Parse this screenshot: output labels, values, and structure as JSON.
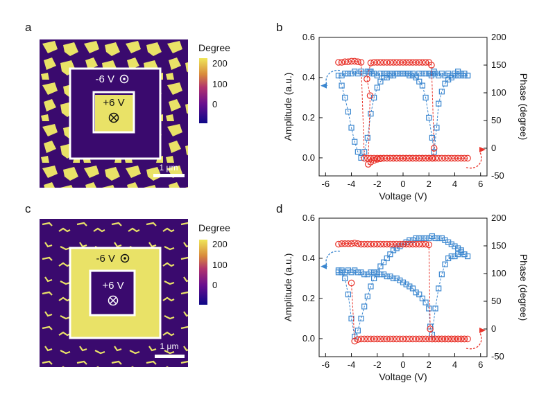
{
  "panels": {
    "a": {
      "letter": "a",
      "colorbar_title": "Degree",
      "colorbar_ticks": [
        "200",
        "100",
        "0"
      ],
      "outer_label": "-6 V",
      "inner_label": "+6 V",
      "scalebar_label": "1 μm"
    },
    "c": {
      "letter": "c",
      "colorbar_title": "Degree",
      "colorbar_ticks": [
        "200",
        "100",
        "0"
      ],
      "outer_label": "-6 V",
      "inner_label": "+6 V",
      "scalebar_label": "1 μm"
    }
  },
  "colors": {
    "map_dark": "#3a0a6e",
    "map_bright": "#e9e267",
    "amplitude": "#3a86cf",
    "phase": "#e8332a"
  },
  "chart_data": [
    {
      "panel": "b",
      "type": "scatter",
      "xlabel": "Voltage (V)",
      "ylabel": "Amplitude (a.u.)",
      "y2label": "Phase (degree)",
      "xlim": [
        -6.5,
        6.5
      ],
      "ylim": [
        -0.09,
        0.6
      ],
      "y2lim": [
        -50,
        200
      ],
      "xticks": [
        -6,
        -4,
        -2,
        0,
        2,
        4,
        6
      ],
      "yticks": [
        0.0,
        0.2,
        0.4,
        0.6
      ],
      "y2ticks": [
        -50,
        0,
        50,
        100,
        150,
        200
      ],
      "series": [
        {
          "axis": "left",
          "marker": "square",
          "x": [
            5,
            4.75,
            4.5,
            4.25,
            4,
            3.75,
            3.5,
            3.25,
            3,
            2.75,
            2.5,
            2.4,
            2.3,
            2.2,
            2.1,
            2,
            1.75,
            1.5,
            1.25,
            1,
            0.75,
            0.5,
            0.25,
            0,
            -0.25,
            -0.5,
            -0.75,
            -1,
            -1.25,
            -1.5,
            -1.75,
            -2,
            -2.25,
            -2.4,
            -2.5,
            -2.6,
            -2.75,
            -3,
            -3.25,
            -3.5,
            -3.75,
            -4,
            -4.25,
            -4.5,
            -4.75,
            -5,
            -4.75,
            -4.5,
            -4.25,
            -4,
            -3.75,
            -3.5,
            -3.25,
            -3,
            -2.75,
            -2.5,
            -2.25,
            -2,
            -1.75,
            -1.5,
            -1.25,
            -1,
            -0.75,
            -0.5,
            -0.25,
            0,
            0.25,
            0.5,
            0.75,
            1,
            1.25,
            1.5,
            1.75,
            2,
            2.25,
            2.4,
            2.6,
            2.75,
            3,
            3.25,
            3.5,
            3.75,
            4,
            4.25,
            4.5,
            4.75,
            5
          ],
          "y": [
            0.41,
            0.42,
            0.42,
            0.43,
            0.42,
            0.41,
            0.42,
            0.41,
            0.42,
            0.41,
            0.42,
            0.43,
            0.42,
            0.41,
            0.42,
            0.42,
            0.42,
            0.42,
            0.42,
            0.41,
            0.42,
            0.41,
            0.42,
            0.42,
            0.42,
            0.42,
            0.41,
            0.42,
            0.42,
            0.42,
            0.42,
            0.41,
            0.42,
            0.42,
            0.43,
            0.43,
            0.43,
            0.42,
            0.43,
            0.42,
            0.43,
            0.42,
            0.42,
            0.42,
            0.41,
            0.41,
            0.36,
            0.3,
            0.23,
            0.15,
            0.08,
            0.03,
            0.0,
            0.03,
            0.1,
            0.22,
            0.3,
            0.35,
            0.38,
            0.4,
            0.4,
            0.41,
            0.42,
            0.42,
            0.42,
            0.42,
            0.42,
            0.42,
            0.41,
            0.4,
            0.38,
            0.36,
            0.3,
            0.2,
            0.1,
            0.03,
            0.15,
            0.27,
            0.33,
            0.37,
            0.39,
            0.4,
            0.41,
            0.41,
            0.41,
            0.41,
            0.41
          ]
        },
        {
          "axis": "right",
          "marker": "circle",
          "x": [
            5,
            4.75,
            4.5,
            4.25,
            4,
            3.75,
            3.5,
            3.25,
            3,
            2.75,
            2.5,
            2.25,
            2,
            1.75,
            1.5,
            1.25,
            1,
            0.75,
            0.5,
            0.25,
            0,
            -0.25,
            -0.5,
            -0.75,
            -1,
            -1.25,
            -1.5,
            -1.75,
            -2,
            -2.25,
            -2.5,
            -2.7,
            -2.55,
            -2.8,
            -2.5,
            -2.25,
            -2,
            -1.75,
            -1.5,
            -1.25,
            -1,
            -0.75,
            -0.5,
            -0.25,
            0,
            0.25,
            0.5,
            0.75,
            1,
            1.25,
            1.5,
            1.75,
            2,
            2.2,
            2.4,
            2.3,
            2.25,
            2,
            1.75,
            1.5,
            1.25,
            1,
            0.75,
            0.5,
            0.25,
            0,
            -0.25,
            -0.5,
            -0.75,
            -1,
            -1.25,
            -1.5,
            -1.75,
            -2,
            -2.25,
            -2.5,
            -2.75,
            -3,
            -3.25,
            -3.5,
            -3.75,
            -4,
            -4.25,
            -4.5,
            -4.75,
            -5
          ],
          "y": [
            -18,
            -18,
            -18,
            -18,
            -18,
            -18,
            -18,
            -18,
            -18,
            -18,
            -18,
            -18,
            -18,
            -18,
            -18,
            -18,
            -18,
            -18,
            -18,
            -18,
            -18,
            -18,
            -18,
            -18,
            -18,
            -18,
            -18,
            -19,
            -20,
            -22,
            -25,
            -29,
            95,
            125,
            154,
            155,
            155,
            155,
            155,
            155,
            155,
            155,
            155,
            155,
            155,
            155,
            155,
            155,
            155,
            155,
            155,
            155,
            155,
            150,
            0,
            -18,
            -18,
            -18,
            -18,
            -18,
            -18,
            -18,
            -18,
            -18,
            -18,
            -18,
            -18,
            -18,
            -18,
            -18,
            -18,
            -18,
            -18,
            -18,
            -18,
            -18,
            -18,
            -18,
            155,
            156,
            157,
            157,
            156,
            156,
            155,
            155
          ]
        }
      ]
    },
    {
      "panel": "d",
      "type": "scatter",
      "xlabel": "Voltage (V)",
      "ylabel": "Amplitude (a.u.)",
      "y2label": "Phase (degree)",
      "xlim": [
        -6.5,
        6.5
      ],
      "ylim": [
        -0.09,
        0.6
      ],
      "y2lim": [
        -50,
        200
      ],
      "xticks": [
        -6,
        -4,
        -2,
        0,
        2,
        4,
        6
      ],
      "yticks": [
        0.0,
        0.2,
        0.4,
        0.6
      ],
      "y2ticks": [
        -50,
        0,
        50,
        100,
        150,
        200
      ],
      "series": [
        {
          "axis": "left",
          "marker": "square",
          "x": [
            -5,
            -4.75,
            -4.5,
            -4.25,
            -4,
            -3.75,
            -3.5,
            -3.25,
            -3,
            -2.75,
            -2.5,
            -2.25,
            -2,
            -1.75,
            -1.5,
            -1.25,
            -1,
            -0.75,
            -0.5,
            -0.25,
            0,
            0.25,
            0.5,
            0.75,
            1,
            1.25,
            1.5,
            1.75,
            2,
            2.1,
            2.25,
            2.5,
            2.75,
            3,
            3.25,
            3.5,
            3.75,
            4,
            4.25,
            4.5,
            4.75,
            5,
            4.75,
            4.5,
            4.25,
            4,
            3.75,
            3.5,
            3.25,
            3,
            2.75,
            2.5,
            2.25,
            2,
            1.75,
            1.5,
            1.25,
            1,
            0.75,
            0.5,
            0.25,
            0,
            -0.25,
            -0.5,
            -0.75,
            -1,
            -1.25,
            -1.5,
            -1.75,
            -2,
            -2.25,
            -2.5,
            -2.75,
            -3,
            -3.25,
            -3.5,
            -3.75,
            -4,
            -4.25,
            -4.5,
            -4.75,
            -5
          ],
          "y": [
            0.33,
            0.34,
            0.33,
            0.34,
            0.33,
            0.34,
            0.33,
            0.33,
            0.32,
            0.32,
            0.33,
            0.33,
            0.32,
            0.32,
            0.32,
            0.31,
            0.31,
            0.3,
            0.3,
            0.29,
            0.28,
            0.27,
            0.26,
            0.25,
            0.23,
            0.22,
            0.2,
            0.18,
            0.15,
            0.06,
            0.02,
            0.15,
            0.25,
            0.32,
            0.37,
            0.4,
            0.41,
            0.41,
            0.42,
            0.43,
            0.42,
            0.41,
            0.42,
            0.44,
            0.45,
            0.46,
            0.47,
            0.48,
            0.49,
            0.5,
            0.5,
            0.5,
            0.51,
            0.5,
            0.5,
            0.5,
            0.5,
            0.5,
            0.49,
            0.49,
            0.48,
            0.47,
            0.46,
            0.45,
            0.44,
            0.42,
            0.4,
            0.38,
            0.36,
            0.33,
            0.3,
            0.26,
            0.21,
            0.16,
            0.1,
            0.04,
            0.01,
            0.1,
            0.22,
            0.3,
            0.33,
            0.34
          ]
        },
        {
          "axis": "right",
          "marker": "circle",
          "x": [
            -5,
            -4.75,
            -4.5,
            -4.25,
            -4,
            -3.75,
            -3.5,
            -3.25,
            -3,
            -2.75,
            -2.5,
            -2.25,
            -2,
            -1.75,
            -1.5,
            -1.25,
            -1,
            -0.75,
            -0.5,
            -0.25,
            0,
            0.25,
            0.5,
            0.75,
            1,
            1.25,
            1.5,
            1.75,
            2,
            2.1,
            2.25,
            2.5,
            2.75,
            3,
            3.25,
            3.5,
            3.75,
            4,
            4.25,
            4.5,
            4.75,
            5,
            4.75,
            4.5,
            4.25,
            4,
            3.75,
            3.5,
            3.25,
            3,
            2.75,
            2.5,
            2.25,
            2,
            1.75,
            1.5,
            1.25,
            1,
            0.75,
            0.5,
            0.25,
            0,
            -0.25,
            -0.5,
            -0.75,
            -1,
            -1.25,
            -1.5,
            -1.75,
            -2,
            -2.25,
            -2.5,
            -2.75,
            -3,
            -3.25,
            -3.5,
            -3.75,
            -4
          ],
          "y": [
            153,
            154,
            154,
            154,
            154,
            155,
            154,
            153,
            153,
            153,
            153,
            153,
            153,
            153,
            153,
            153,
            153,
            153,
            153,
            153,
            153,
            153,
            153,
            153,
            153,
            153,
            153,
            153,
            152,
            0,
            -18,
            -18,
            -18,
            -18,
            -18,
            -18,
            -18,
            -18,
            -18,
            -18,
            -18,
            -18,
            -18,
            -18,
            -18,
            -18,
            -18,
            -18,
            -18,
            -18,
            -18,
            -18,
            -18,
            -18,
            -18,
            -18,
            -18,
            -18,
            -18,
            -18,
            -18,
            -18,
            -18,
            -18,
            -18,
            -18,
            -18,
            -18,
            -18,
            -18,
            -18,
            -18,
            -18,
            -18,
            -18,
            -19,
            -22,
            83
          ]
        }
      ]
    }
  ]
}
